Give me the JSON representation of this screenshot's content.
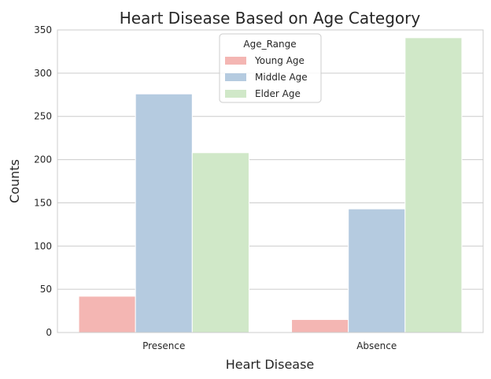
{
  "chart_data": {
    "type": "bar",
    "title": "Heart Disease Based on Age Category",
    "xlabel": "Heart Disease",
    "ylabel": "Counts",
    "categories": [
      "Presence",
      "Absence"
    ],
    "series": [
      {
        "name": "Young Age",
        "values": [
          42,
          15
        ],
        "color": "#f4b6b3"
      },
      {
        "name": "Middle Age",
        "values": [
          276,
          143
        ],
        "color": "#b5cbe0"
      },
      {
        "name": "Elder Age",
        "values": [
          208,
          341
        ],
        "color": "#d0e8c8"
      }
    ],
    "ylim": [
      0,
      350
    ],
    "yticks": [
      0,
      50,
      100,
      150,
      200,
      250,
      300,
      350
    ],
    "grid": true,
    "legend": {
      "title": "Age_Range",
      "placement": "upper-center"
    }
  }
}
